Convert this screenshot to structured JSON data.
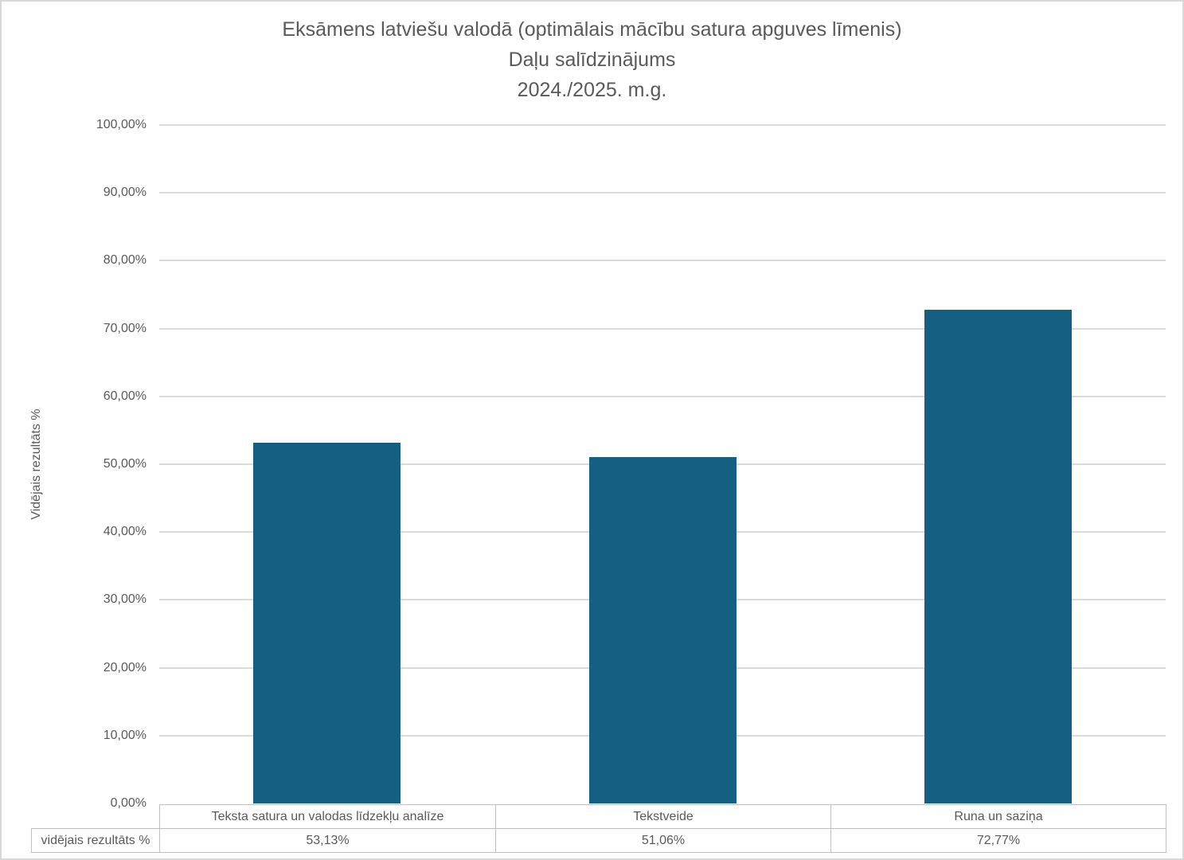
{
  "title": {
    "line1": "Eksāmens latviešu valodā (optimālais mācību satura apguves līmenis)",
    "line2": "Daļu salīdzinājums",
    "line3": "2024./2025. m.g."
  },
  "chart_data": {
    "type": "bar",
    "title": "Eksāmens latviešu valodā (optimālais mācību satura apguves līmenis) Daļu salīdzinājums 2024./2025. m.g.",
    "categories": [
      "Teksta satura un valodas līdzekļu analīze",
      "Tekstveide",
      "Runa un saziņa"
    ],
    "series": [
      {
        "name": "vidējais rezultāts %",
        "values": [
          53.13,
          51.06,
          72.77
        ]
      }
    ],
    "xlabel": "",
    "ylabel": "Vidējais rezultāts %",
    "ylim": [
      0,
      100
    ],
    "ytick_step": 10,
    "ytick_labels": [
      "0,00%",
      "10,00%",
      "20,00%",
      "30,00%",
      "40,00%",
      "50,00%",
      "60,00%",
      "70,00%",
      "80,00%",
      "90,00%",
      "100,00%"
    ],
    "grid": true,
    "legend": false,
    "data_table": {
      "row_label": "vidējais rezultāts %",
      "values": [
        "53,13%",
        "51,06%",
        "72,77%"
      ]
    }
  },
  "colors": {
    "bar": "#156082",
    "gridline": "#dadada",
    "axis_text": "#595959",
    "title_text": "#595959",
    "table_border": "#bfbfbf",
    "table_text": "#595959",
    "frame_border": "#d9d9d9",
    "background": "#ffffff"
  }
}
